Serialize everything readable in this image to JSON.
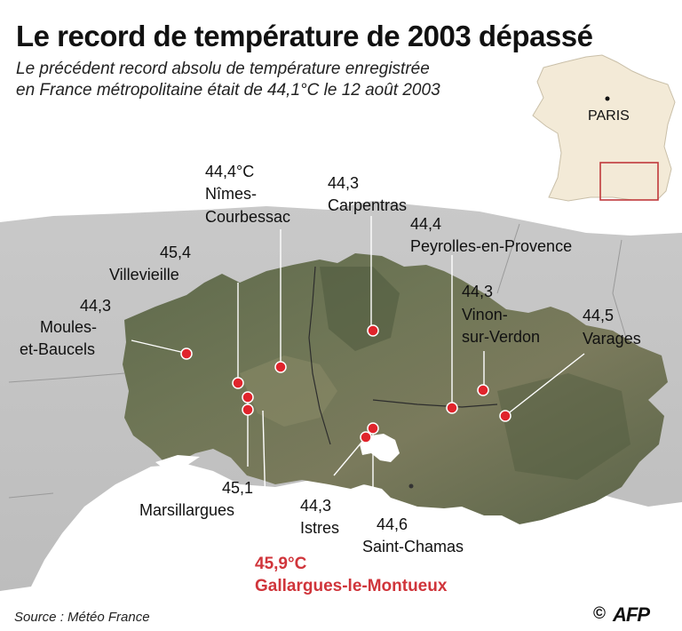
{
  "title": "Le record de température de 2003 dépassé",
  "subtitle_line1": "Le précédent record absolu de température enregistrée",
  "subtitle_line2": "en France métropolitaine était de 44,1°C le 12 août 2003",
  "inset": {
    "city": "PARIS"
  },
  "stations": [
    {
      "value": "44,4°C",
      "name1": "Nîmes-",
      "name2": "Courbessac"
    },
    {
      "value": "44,3",
      "name1": "Carpentras"
    },
    {
      "value": "45,4",
      "name1": "Villevieille"
    },
    {
      "value": "44,4",
      "name1": "Peyrolles-en-Provence"
    },
    {
      "value": "44,3",
      "name1": "Moules-",
      "name2": "et-Baucels"
    },
    {
      "value": "44,3",
      "name1": "Vinon-",
      "name2": "sur-Verdon"
    },
    {
      "value": "44,5",
      "name1": "Varages"
    },
    {
      "value": "45,1",
      "name1": "Marsillargues"
    },
    {
      "value": "44,3",
      "name1": "Istres"
    },
    {
      "value": "44,6",
      "name1": "Saint-Chamas"
    },
    {
      "value": "45,9°C",
      "name1": "Gallargues-le-Montueux"
    }
  ],
  "source": "Source : Météo France",
  "copyright": "©",
  "agency": "AFP",
  "colors": {
    "highlight": "#d0353b",
    "marker": "#e0242c",
    "land": "#f3ead7",
    "sea": "#ffffff"
  }
}
